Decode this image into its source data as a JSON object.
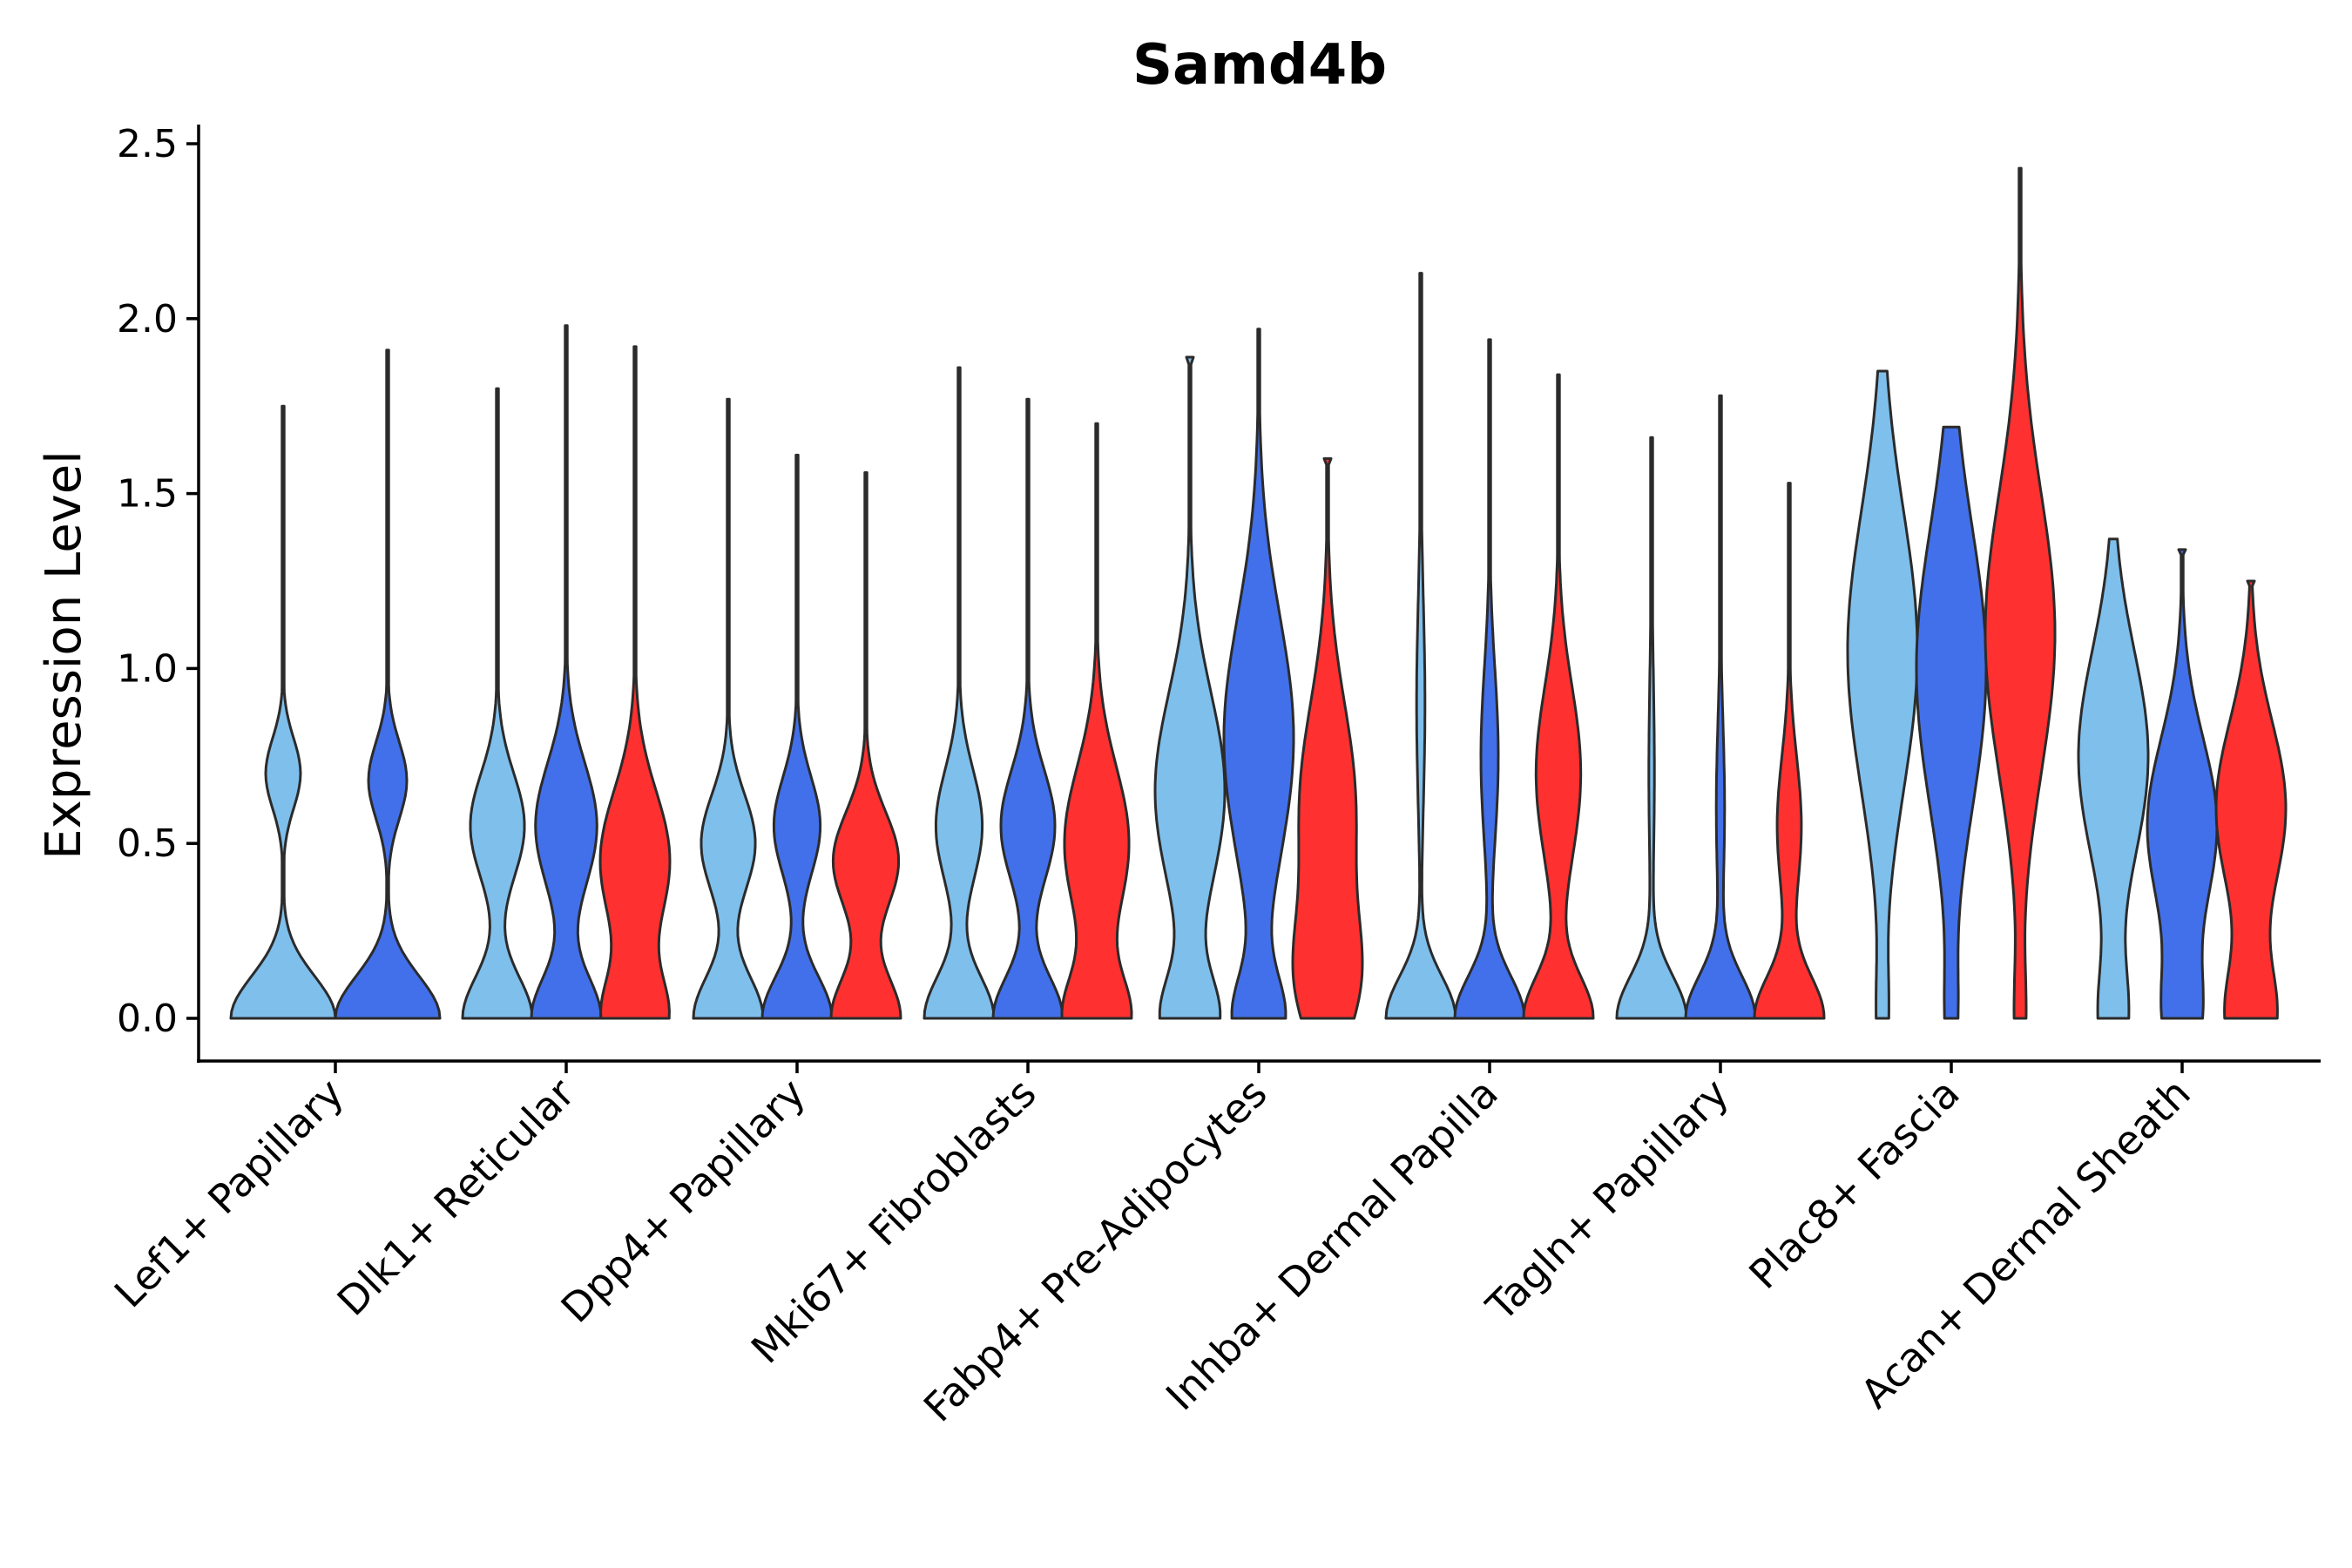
{
  "chart_data": {
    "type": "violin",
    "title": "Samd4b",
    "xlabel": "",
    "ylabel": "Expression Level",
    "ylim": [
      -0.12,
      2.55
    ],
    "yticks": [
      0.0,
      0.5,
      1.0,
      1.5,
      2.0,
      2.5
    ],
    "ytick_labels": [
      "0.0",
      "0.5",
      "1.0",
      "1.5",
      "2.0",
      "2.5"
    ],
    "legend": "none",
    "grid": false,
    "series_colors": {
      "light-blue": "#7fbfec",
      "blue": "#4270ea",
      "red": "#ff3030"
    },
    "categories": [
      {
        "label": "Lef1+ Papillary",
        "violins": [
          {
            "series": "light-blue",
            "max": 1.75,
            "min": 0.0,
            "modes": [
              [
                0.0,
                0.3,
                0.12
              ],
              [
                0.7,
                0.1,
                0.1
              ]
            ]
          },
          {
            "series": "blue",
            "max": 1.91,
            "min": 0.0,
            "modes": [
              [
                0.0,
                0.3,
                0.12
              ],
              [
                0.68,
                0.11,
                0.11
              ]
            ]
          }
        ]
      },
      {
        "label": "Dlk1+ Reticular",
        "violins": [
          {
            "series": "light-blue",
            "max": 1.8,
            "min": 0.0,
            "modes": [
              [
                0.0,
                0.9,
                0.12
              ],
              [
                0.55,
                0.7,
                0.15
              ]
            ]
          },
          {
            "series": "blue",
            "max": 1.98,
            "min": 0.0,
            "modes": [
              [
                0.0,
                0.9,
                0.12
              ],
              [
                0.55,
                0.8,
                0.18
              ]
            ]
          },
          {
            "series": "red",
            "max": 1.92,
            "min": 0.0,
            "modes": [
              [
                0.0,
                0.9,
                0.12
              ],
              [
                0.45,
                1.0,
                0.2
              ]
            ]
          }
        ]
      },
      {
        "label": "Dpp4+ Papillary",
        "violins": [
          {
            "series": "light-blue",
            "max": 1.77,
            "min": 0.0,
            "modes": [
              [
                0.0,
                0.9,
                0.12
              ],
              [
                0.5,
                0.7,
                0.14
              ]
            ]
          },
          {
            "series": "blue",
            "max": 1.61,
            "min": 0.0,
            "modes": [
              [
                0.0,
                0.9,
                0.12
              ],
              [
                0.55,
                0.6,
                0.14
              ]
            ]
          },
          {
            "series": "red",
            "max": 1.56,
            "min": 0.0,
            "modes": [
              [
                0.0,
                0.9,
                0.12
              ],
              [
                0.45,
                0.85,
                0.14
              ]
            ]
          }
        ]
      },
      {
        "label": "Mki67+ Fibroblasts",
        "violins": [
          {
            "series": "light-blue",
            "max": 1.86,
            "min": 0.0,
            "modes": [
              [
                0.0,
                0.9,
                0.12
              ],
              [
                0.55,
                0.6,
                0.16
              ]
            ]
          },
          {
            "series": "blue",
            "max": 1.77,
            "min": 0.0,
            "modes": [
              [
                0.0,
                0.9,
                0.12
              ],
              [
                0.55,
                0.7,
                0.16
              ]
            ]
          },
          {
            "series": "red",
            "max": 1.7,
            "min": 0.0,
            "modes": [
              [
                0.0,
                0.9,
                0.12
              ],
              [
                0.5,
                0.9,
                0.22
              ]
            ]
          }
        ]
      },
      {
        "label": "Fabp4+ Pre-Adipocytes",
        "violins": [
          {
            "series": "light-blue",
            "max": 1.89,
            "min": 0.0,
            "modes": [
              [
                0.0,
                0.8,
                0.12
              ],
              [
                0.65,
                1.0,
                0.28
              ]
            ]
          },
          {
            "series": "blue",
            "max": 1.97,
            "min": 0.0,
            "modes": [
              [
                0.0,
                0.7,
                0.12
              ],
              [
                0.8,
                1.0,
                0.35
              ]
            ]
          },
          {
            "series": "red",
            "max": 1.6,
            "min": 0.0,
            "modes": [
              [
                0.1,
                0.95,
                0.18
              ],
              [
                0.6,
                1.0,
                0.3
              ]
            ]
          }
        ]
      },
      {
        "label": "Inhba+ Dermal Papilla",
        "violins": [
          {
            "series": "light-blue",
            "max": 2.13,
            "min": 0.0,
            "modes": [
              [
                0.0,
                1.0,
                0.12
              ],
              [
                0.9,
                0.12,
                0.3
              ]
            ]
          },
          {
            "series": "blue",
            "max": 1.94,
            "min": 0.0,
            "modes": [
              [
                0.0,
                1.0,
                0.12
              ],
              [
                0.75,
                0.25,
                0.25
              ]
            ]
          },
          {
            "series": "red",
            "max": 1.84,
            "min": 0.0,
            "modes": [
              [
                0.0,
                1.0,
                0.12
              ],
              [
                0.7,
                0.65,
                0.25
              ]
            ]
          }
        ]
      },
      {
        "label": "Tagln+ Papillary",
        "violins": [
          {
            "series": "light-blue",
            "max": 1.66,
            "min": 0.0,
            "modes": [
              [
                0.0,
                1.0,
                0.12
              ],
              [
                0.7,
                0.08,
                0.3
              ]
            ]
          },
          {
            "series": "blue",
            "max": 1.78,
            "min": 0.0,
            "modes": [
              [
                0.0,
                1.0,
                0.12
              ],
              [
                0.6,
                0.12,
                0.25
              ]
            ]
          },
          {
            "series": "red",
            "max": 1.53,
            "min": 0.0,
            "modes": [
              [
                0.0,
                1.0,
                0.12
              ],
              [
                0.55,
                0.35,
                0.2
              ]
            ]
          }
        ]
      },
      {
        "label": "Plac8+ Fascia",
        "violins": [
          {
            "series": "light-blue",
            "max": 1.85,
            "min": 0.0,
            "modes": [
              [
                0.0,
                0.15,
                0.15
              ],
              [
                1.05,
                1.0,
                0.4
              ]
            ]
          },
          {
            "series": "blue",
            "max": 1.69,
            "min": 0.0,
            "modes": [
              [
                0.0,
                0.15,
                0.15
              ],
              [
                1.0,
                1.0,
                0.4
              ]
            ]
          },
          {
            "series": "red",
            "max": 2.43,
            "min": 0.0,
            "modes": [
              [
                0.0,
                0.15,
                0.15
              ],
              [
                1.1,
                1.0,
                0.4
              ]
            ]
          }
        ]
      },
      {
        "label": "Acan+ Dermal Sheath",
        "violins": [
          {
            "series": "light-blue",
            "max": 1.37,
            "min": 0.0,
            "modes": [
              [
                0.0,
                0.4,
                0.15
              ],
              [
                0.75,
                1.0,
                0.3
              ]
            ]
          },
          {
            "series": "blue",
            "max": 1.34,
            "min": 0.0,
            "modes": [
              [
                0.0,
                0.5,
                0.15
              ],
              [
                0.55,
                1.0,
                0.25
              ]
            ]
          },
          {
            "series": "red",
            "max": 1.25,
            "min": 0.0,
            "modes": [
              [
                0.0,
                0.7,
                0.15
              ],
              [
                0.6,
                1.0,
                0.25
              ]
            ]
          }
        ]
      }
    ]
  }
}
